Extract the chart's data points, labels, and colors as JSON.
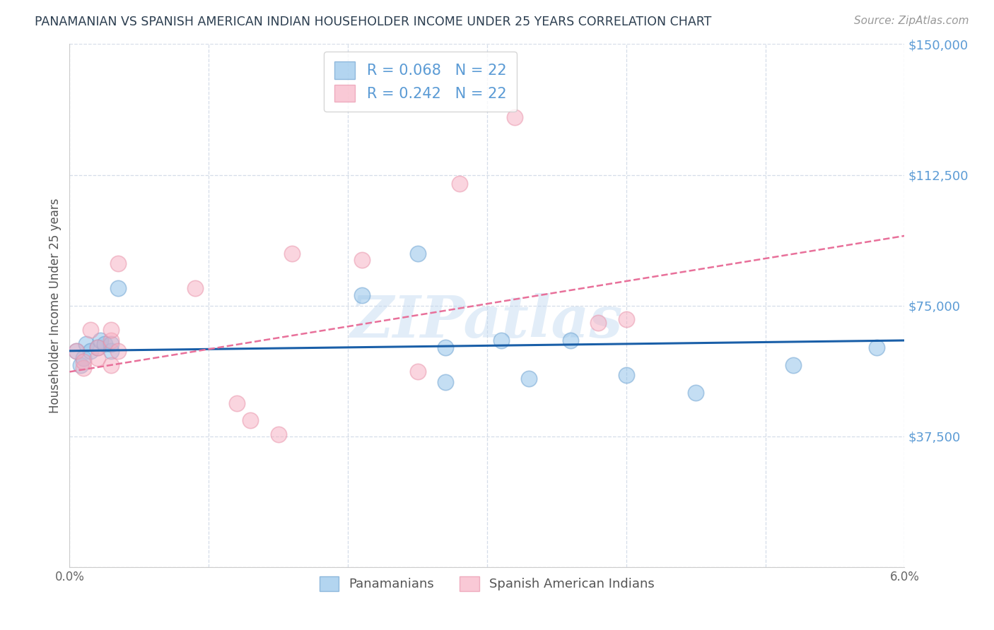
{
  "title": "PANAMANIAN VS SPANISH AMERICAN INDIAN HOUSEHOLDER INCOME UNDER 25 YEARS CORRELATION CHART",
  "source": "Source: ZipAtlas.com",
  "ylabel": "Householder Income Under 25 years",
  "xlim": [
    0.0,
    0.06
  ],
  "ylim": [
    0,
    150000
  ],
  "xticks": [
    0.0,
    0.01,
    0.02,
    0.03,
    0.04,
    0.05,
    0.06
  ],
  "xticklabels": [
    "0.0%",
    "",
    "",
    "",
    "",
    "",
    "6.0%"
  ],
  "yticks": [
    0,
    37500,
    75000,
    112500,
    150000
  ],
  "yticklabels": [
    "",
    "$37,500",
    "$75,000",
    "$112,500",
    "$150,000"
  ],
  "blue_x": [
    0.0005,
    0.0008,
    0.001,
    0.0012,
    0.0015,
    0.002,
    0.0022,
    0.0025,
    0.003,
    0.003,
    0.0035,
    0.021,
    0.025,
    0.027,
    0.027,
    0.031,
    0.033,
    0.036,
    0.04,
    0.045,
    0.052,
    0.058
  ],
  "blue_y": [
    62000,
    58000,
    60000,
    64000,
    62000,
    63000,
    65000,
    64000,
    62000,
    64000,
    80000,
    78000,
    90000,
    53000,
    63000,
    65000,
    54000,
    65000,
    55000,
    50000,
    58000,
    63000
  ],
  "pink_x": [
    0.0005,
    0.001,
    0.001,
    0.0015,
    0.002,
    0.002,
    0.003,
    0.003,
    0.003,
    0.0035,
    0.0035,
    0.009,
    0.012,
    0.013,
    0.015,
    0.016,
    0.021,
    0.025,
    0.028,
    0.032,
    0.038,
    0.04
  ],
  "pink_y": [
    62000,
    57000,
    59000,
    68000,
    60000,
    63000,
    58000,
    65000,
    68000,
    62000,
    87000,
    80000,
    47000,
    42000,
    38000,
    90000,
    88000,
    56000,
    110000,
    129000,
    70000,
    71000
  ],
  "blue_line": {
    "x0": 0.0,
    "y0": 62000,
    "x1": 0.06,
    "y1": 65000
  },
  "pink_line": {
    "x0": 0.0,
    "y0": 56000,
    "x1": 0.06,
    "y1": 95000
  },
  "watermark": "ZIPatlas",
  "blue_color": "#8bbfe8",
  "blue_edge": "#6aa0d0",
  "pink_color": "#f7adc0",
  "pink_edge": "#e890a8",
  "blue_line_color": "#1a5fa8",
  "pink_line_color": "#e8709a",
  "axis_color": "#5b9bd5",
  "grid_color": "#d5dde8",
  "background": "#ffffff"
}
